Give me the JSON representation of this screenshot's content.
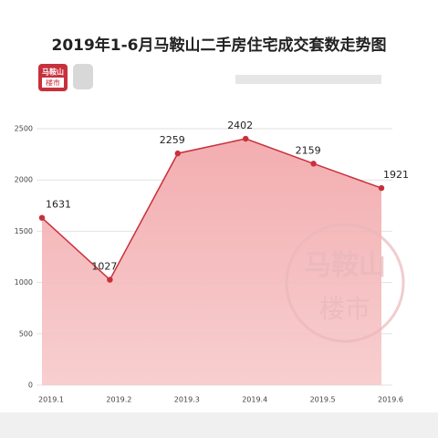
{
  "chart_data": {
    "type": "area",
    "title": "2019年1-6月马鞍山二手房住宅成交套数走势图",
    "logo": {
      "top": "马鞍山",
      "bottom": "楼市"
    },
    "watermark": {
      "top": "马鞍山",
      "bottom": "楼市"
    },
    "categories": [
      "2019.1",
      "2019.2",
      "2019.3",
      "2019.4",
      "2019.5",
      "2019.6"
    ],
    "values": [
      1631,
      1027,
      2259,
      2402,
      2159,
      1921
    ],
    "color": "#c8303c",
    "fill": "#f3b3b5",
    "ylim": [
      0,
      2500
    ],
    "yticks": [
      0,
      500,
      1000,
      1500,
      2000,
      2500
    ],
    "grid": true
  }
}
